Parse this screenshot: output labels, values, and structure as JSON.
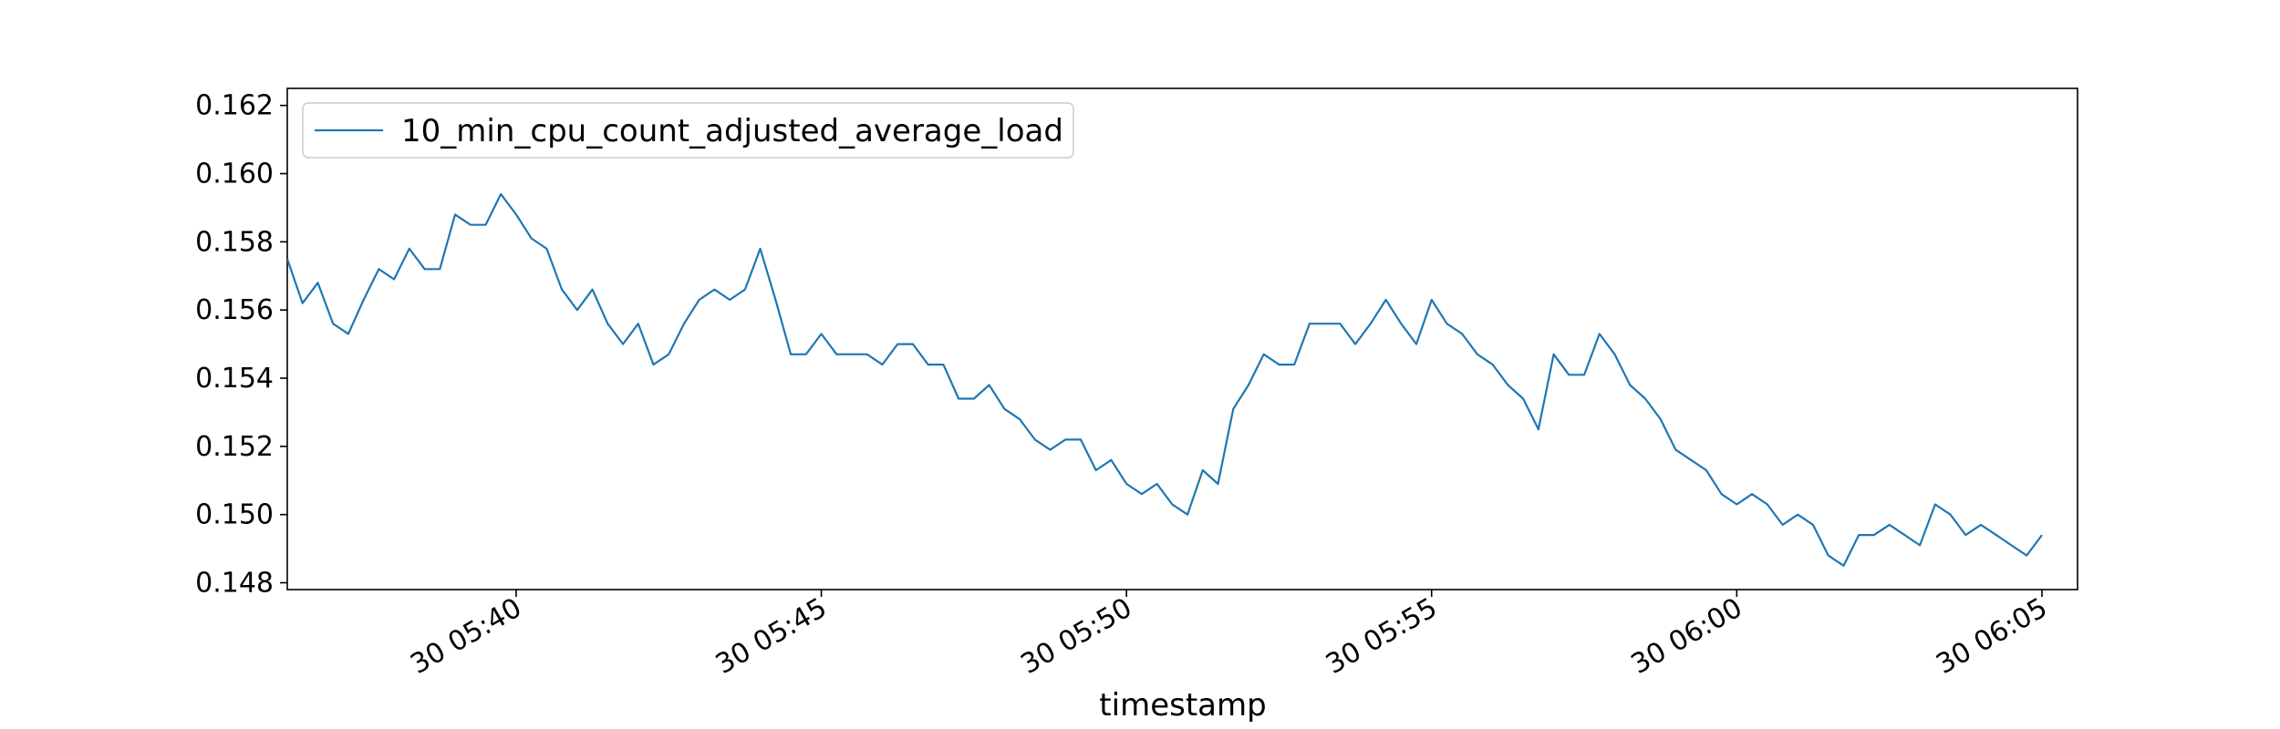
{
  "chart_data": {
    "type": "line",
    "title": "",
    "xlabel": "timestamp",
    "ylabel": "",
    "x_range": [
      "05:36:15",
      "06:05:35"
    ],
    "x_ticks": [
      "05:40",
      "05:45",
      "05:50",
      "05:55",
      "06:00",
      "06:05"
    ],
    "x_tick_labels": [
      "30 05:40",
      "30 05:45",
      "30 05:50",
      "30 05:55",
      "30 06:00",
      "30 06:05"
    ],
    "ylim": [
      0.1478,
      0.1625
    ],
    "y_ticks": [
      0.148,
      0.15,
      0.152,
      0.154,
      0.156,
      0.158,
      0.16,
      0.162
    ],
    "y_tick_labels": [
      "0.148",
      "0.150",
      "0.152",
      "0.154",
      "0.156",
      "0.158",
      "0.160",
      "0.162"
    ],
    "grid": false,
    "legend_position": "top-left",
    "colors": {
      "series": "#1f77b4"
    },
    "series": [
      {
        "name": "10_min_cpu_count_adjusted_average_load",
        "points": [
          [
            "05:36:15",
            0.1575
          ],
          [
            "05:36:30",
            0.1562
          ],
          [
            "05:36:45",
            0.1568
          ],
          [
            "05:37:00",
            0.1556
          ],
          [
            "05:37:15",
            0.1553
          ],
          [
            "05:37:30",
            0.1563
          ],
          [
            "05:37:45",
            0.1572
          ],
          [
            "05:38:00",
            0.1569
          ],
          [
            "05:38:15",
            0.1578
          ],
          [
            "05:38:30",
            0.1572
          ],
          [
            "05:38:45",
            0.1572
          ],
          [
            "05:39:00",
            0.1588
          ],
          [
            "05:39:15",
            0.1585
          ],
          [
            "05:39:30",
            0.1585
          ],
          [
            "05:39:45",
            0.1594
          ],
          [
            "05:40:00",
            0.1588
          ],
          [
            "05:40:15",
            0.1581
          ],
          [
            "05:40:30",
            0.1578
          ],
          [
            "05:40:45",
            0.1566
          ],
          [
            "05:41:00",
            0.156
          ],
          [
            "05:41:15",
            0.1566
          ],
          [
            "05:41:30",
            0.1556
          ],
          [
            "05:41:45",
            0.155
          ],
          [
            "05:42:00",
            0.1556
          ],
          [
            "05:42:15",
            0.1544
          ],
          [
            "05:42:30",
            0.1547
          ],
          [
            "05:42:45",
            0.1556
          ],
          [
            "05:43:00",
            0.1563
          ],
          [
            "05:43:15",
            0.1566
          ],
          [
            "05:43:30",
            0.1563
          ],
          [
            "05:43:45",
            0.1566
          ],
          [
            "05:44:00",
            0.1578
          ],
          [
            "05:44:15",
            0.1563
          ],
          [
            "05:44:30",
            0.1547
          ],
          [
            "05:44:45",
            0.1547
          ],
          [
            "05:45:00",
            0.1553
          ],
          [
            "05:45:15",
            0.1547
          ],
          [
            "05:45:30",
            0.1547
          ],
          [
            "05:45:45",
            0.1547
          ],
          [
            "05:46:00",
            0.1544
          ],
          [
            "05:46:15",
            0.155
          ],
          [
            "05:46:30",
            0.155
          ],
          [
            "05:46:45",
            0.1544
          ],
          [
            "05:47:00",
            0.1544
          ],
          [
            "05:47:15",
            0.1534
          ],
          [
            "05:47:30",
            0.1534
          ],
          [
            "05:47:45",
            0.1538
          ],
          [
            "05:48:00",
            0.1531
          ],
          [
            "05:48:15",
            0.1528
          ],
          [
            "05:48:30",
            0.1522
          ],
          [
            "05:48:45",
            0.1519
          ],
          [
            "05:49:00",
            0.1522
          ],
          [
            "05:49:15",
            0.1522
          ],
          [
            "05:49:30",
            0.1513
          ],
          [
            "05:49:45",
            0.1516
          ],
          [
            "05:50:00",
            0.1509
          ],
          [
            "05:50:15",
            0.1506
          ],
          [
            "05:50:30",
            0.1509
          ],
          [
            "05:50:45",
            0.1503
          ],
          [
            "05:51:00",
            0.15
          ],
          [
            "05:51:15",
            0.1513
          ],
          [
            "05:51:30",
            0.1509
          ],
          [
            "05:51:45",
            0.1531
          ],
          [
            "05:52:00",
            0.1538
          ],
          [
            "05:52:15",
            0.1547
          ],
          [
            "05:52:30",
            0.1544
          ],
          [
            "05:52:45",
            0.1544
          ],
          [
            "05:53:00",
            0.1556
          ],
          [
            "05:53:15",
            0.1556
          ],
          [
            "05:53:30",
            0.1556
          ],
          [
            "05:53:45",
            0.155
          ],
          [
            "05:54:00",
            0.1556
          ],
          [
            "05:54:15",
            0.1563
          ],
          [
            "05:54:30",
            0.1556
          ],
          [
            "05:54:45",
            0.155
          ],
          [
            "05:55:00",
            0.1563
          ],
          [
            "05:55:15",
            0.1556
          ],
          [
            "05:55:30",
            0.1553
          ],
          [
            "05:55:45",
            0.1547
          ],
          [
            "05:56:00",
            0.1544
          ],
          [
            "05:56:15",
            0.1538
          ],
          [
            "05:56:30",
            0.1534
          ],
          [
            "05:56:45",
            0.1525
          ],
          [
            "05:57:00",
            0.1547
          ],
          [
            "05:57:15",
            0.1541
          ],
          [
            "05:57:30",
            0.1541
          ],
          [
            "05:57:45",
            0.1553
          ],
          [
            "05:58:00",
            0.1547
          ],
          [
            "05:58:15",
            0.1538
          ],
          [
            "05:58:30",
            0.1534
          ],
          [
            "05:58:45",
            0.1528
          ],
          [
            "05:59:00",
            0.1519
          ],
          [
            "05:59:15",
            0.1516
          ],
          [
            "05:59:30",
            0.1513
          ],
          [
            "05:59:45",
            0.1506
          ],
          [
            "06:00:00",
            0.1503
          ],
          [
            "06:00:15",
            0.1506
          ],
          [
            "06:00:30",
            0.1503
          ],
          [
            "06:00:45",
            0.1497
          ],
          [
            "06:01:00",
            0.15
          ],
          [
            "06:01:15",
            0.1497
          ],
          [
            "06:01:30",
            0.1488
          ],
          [
            "06:01:45",
            0.1485
          ],
          [
            "06:02:00",
            0.1494
          ],
          [
            "06:02:15",
            0.1494
          ],
          [
            "06:02:30",
            0.1497
          ],
          [
            "06:02:45",
            0.1494
          ],
          [
            "06:03:00",
            0.1491
          ],
          [
            "06:03:15",
            0.1503
          ],
          [
            "06:03:30",
            0.15
          ],
          [
            "06:03:45",
            0.1494
          ],
          [
            "06:04:00",
            0.1497
          ],
          [
            "06:04:15",
            0.1494
          ],
          [
            "06:04:30",
            0.1491
          ],
          [
            "06:04:45",
            0.1488
          ],
          [
            "06:05:00",
            0.1494
          ]
        ]
      }
    ]
  }
}
